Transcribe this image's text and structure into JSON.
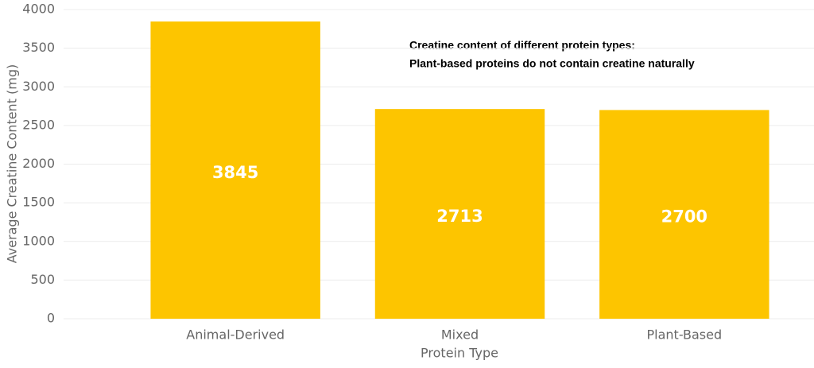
{
  "chart_data": {
    "type": "bar",
    "annotations": [
      "Creatine content of different protein types:",
      "Plant-based proteins do not contain creatine naturally"
    ],
    "x_label": "Protein Type",
    "y_label": "Average Creatine Content (mg)",
    "categories": [
      "Animal-Derived",
      "Mixed",
      "Plant-Based"
    ],
    "values": [
      3845,
      2713,
      2700
    ],
    "color": "#fdc500",
    "ylim": [
      0,
      4000
    ],
    "yticks": [
      0,
      500,
      1000,
      1500,
      2000,
      2500,
      3000,
      3500,
      4000
    ],
    "grid": true
  }
}
